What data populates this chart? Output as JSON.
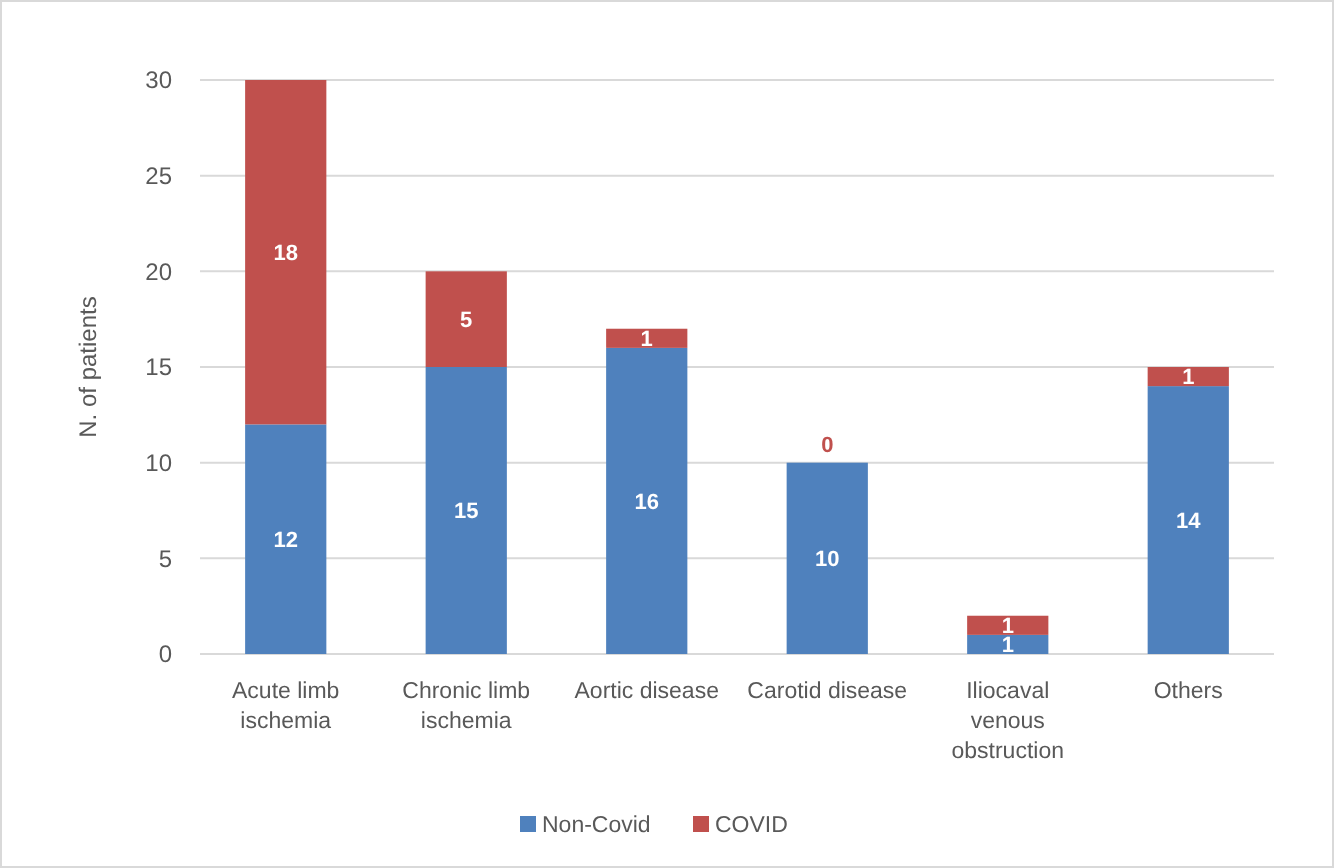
{
  "chart_data": {
    "type": "bar",
    "stacked": true,
    "ylabel": "N. of patients",
    "categories": [
      "Acute limb ischemia",
      "Chronic limb ischemia",
      "Aortic disease",
      "Carotid disease",
      "Iliocaval venous obstruction",
      "Others"
    ],
    "series": [
      {
        "name": "Non-Covid",
        "color": "#4f81bd",
        "values": [
          12,
          15,
          16,
          10,
          1,
          14
        ]
      },
      {
        "name": "COVID",
        "color": "#c0504d",
        "values": [
          18,
          5,
          1,
          0,
          1,
          1
        ]
      }
    ],
    "ylim": [
      0,
      30
    ],
    "yticks": [
      0,
      5,
      10,
      15,
      20,
      25,
      30
    ],
    "grid": "y",
    "legend": "bottom",
    "data_labels": true
  }
}
